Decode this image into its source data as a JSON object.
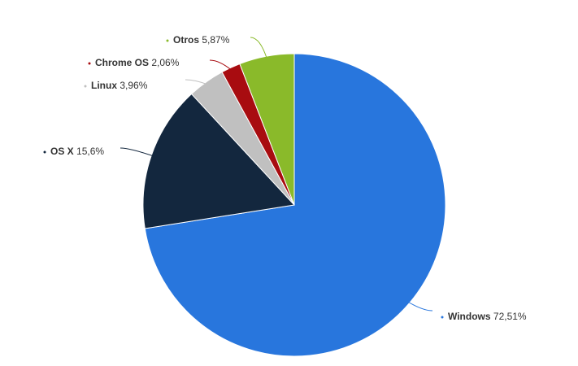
{
  "chart_data": {
    "type": "pie",
    "categories": [
      "Windows",
      "OS X",
      "Linux",
      "Chrome OS",
      "Otros"
    ],
    "values": [
      72.51,
      15.6,
      3.96,
      2.06,
      5.87
    ],
    "value_labels": [
      "72,51%",
      "15,6%",
      "3,96%",
      "2,06%",
      "5,87%"
    ],
    "colors": [
      "#2876dd",
      "#13273e",
      "#c0c0c0",
      "#a80c10",
      "#8aba2a"
    ]
  }
}
